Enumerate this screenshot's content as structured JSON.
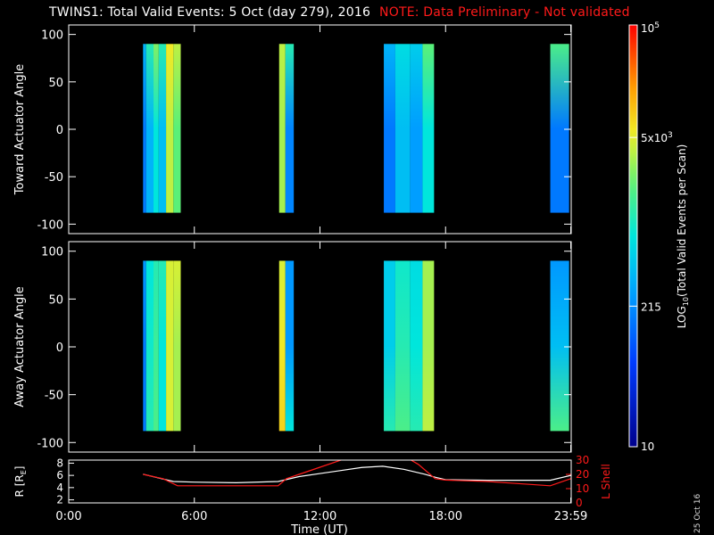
{
  "title": {
    "main": "TWINS1: Total Valid Events:  5 Oct (day 279), 2016",
    "note": "NOTE: Data Preliminary - Not validated"
  },
  "datestamp": "25 Oct 16",
  "colors": {
    "note": "#ff1a1a",
    "r_line": "#ffffff",
    "lshell_line": "#ff1a1a",
    "background": "#000000"
  },
  "chart_data": [
    {
      "type": "heatmap",
      "ylabel": "Toward Actuator Angle",
      "ylim": [
        -110,
        110
      ],
      "yticks": [
        100,
        50,
        0,
        -50,
        -100
      ],
      "angle_range": [
        -88,
        90
      ],
      "x_unit": "hours UT",
      "bands": [
        {
          "x": [
            3.55,
            3.7
          ],
          "lvl": 0.3,
          "tint": [
            0.3,
            0.4
          ]
        },
        {
          "x": [
            3.7,
            4.05
          ],
          "lvl": 0.4,
          "tint": [
            0.4,
            0.55
          ]
        },
        {
          "x": [
            4.05,
            4.3
          ],
          "lvl": 0.5,
          "tint": [
            0.5,
            0.65
          ]
        },
        {
          "x": [
            4.3,
            4.65
          ],
          "lvl": 0.42,
          "tint": [
            0.42,
            0.55
          ]
        },
        {
          "x": [
            4.65,
            5.0
          ],
          "lvl": 0.7,
          "tint": [
            0.7,
            0.75
          ]
        },
        {
          "x": [
            5.0,
            5.35
          ],
          "lvl": 0.62,
          "tint": [
            0.62,
            0.7
          ]
        },
        {
          "x": [
            10.05,
            10.35
          ],
          "lvl": 0.68,
          "tint": [
            0.68,
            0.7
          ]
        },
        {
          "x": [
            10.35,
            10.75
          ],
          "lvl": 0.32,
          "tint": [
            0.32,
            0.55
          ]
        },
        {
          "x": [
            15.05,
            15.6
          ],
          "lvl": 0.3,
          "tint": [
            0.3,
            0.4
          ]
        },
        {
          "x": [
            15.6,
            16.3
          ],
          "lvl": 0.42,
          "tint": [
            0.42,
            0.48
          ]
        },
        {
          "x": [
            16.3,
            16.9
          ],
          "lvl": 0.36,
          "tint": [
            0.36,
            0.45
          ]
        },
        {
          "x": [
            16.9,
            17.45
          ],
          "lvl": 0.5,
          "tint": [
            0.5,
            0.62
          ]
        },
        {
          "x": [
            23.0,
            23.9
          ],
          "lvl": 0.3,
          "tint": [
            0.3,
            0.6
          ]
        }
      ]
    },
    {
      "type": "heatmap",
      "ylabel": "Away Actuator Angle",
      "ylim": [
        -110,
        110
      ],
      "yticks": [
        100,
        50,
        0,
        -50,
        -100
      ],
      "angle_range": [
        -88,
        90
      ],
      "x_unit": "hours UT",
      "bands": [
        {
          "x": [
            3.55,
            3.7
          ],
          "lvl": 0.3,
          "tint": [
            0.3,
            0.35
          ]
        },
        {
          "x": [
            3.7,
            4.05
          ],
          "lvl": 0.52,
          "tint": [
            0.55,
            0.5
          ]
        },
        {
          "x": [
            4.05,
            4.3
          ],
          "lvl": 0.58,
          "tint": [
            0.6,
            0.55
          ]
        },
        {
          "x": [
            4.3,
            4.65
          ],
          "lvl": 0.5,
          "tint": [
            0.5,
            0.55
          ]
        },
        {
          "x": [
            4.65,
            5.0
          ],
          "lvl": 0.72,
          "tint": [
            0.72,
            0.72
          ]
        },
        {
          "x": [
            5.0,
            5.35
          ],
          "lvl": 0.68,
          "tint": [
            0.68,
            0.72
          ]
        },
        {
          "x": [
            10.05,
            10.35
          ],
          "lvl": 0.75,
          "tint": [
            0.78,
            0.72
          ]
        },
        {
          "x": [
            10.35,
            10.75
          ],
          "lvl": 0.35,
          "tint": [
            0.5,
            0.35
          ]
        },
        {
          "x": [
            15.05,
            15.6
          ],
          "lvl": 0.45,
          "tint": [
            0.55,
            0.45
          ]
        },
        {
          "x": [
            15.6,
            16.3
          ],
          "lvl": 0.55,
          "tint": [
            0.6,
            0.52
          ]
        },
        {
          "x": [
            16.3,
            16.9
          ],
          "lvl": 0.5,
          "tint": [
            0.55,
            0.48
          ]
        },
        {
          "x": [
            16.9,
            17.45
          ],
          "lvl": 0.68,
          "tint": [
            0.7,
            0.68
          ]
        },
        {
          "x": [
            23.0,
            23.9
          ],
          "lvl": 0.42,
          "tint": [
            0.6,
            0.35
          ]
        }
      ]
    },
    {
      "type": "line",
      "xlabel": "Time (UT)",
      "xlim": [
        0,
        24
      ],
      "xticks": [
        {
          "value": 0,
          "label": "0:00"
        },
        {
          "value": 6,
          "label": "6:00"
        },
        {
          "value": 12,
          "label": "12:00"
        },
        {
          "value": 18,
          "label": "18:00"
        },
        {
          "value": 23.98,
          "label": "23:59"
        }
      ],
      "ylabel_left": "R [R",
      "ylabel_left_sub": "E",
      "ylabel_left_close": "]",
      "ylim_left": [
        1.5,
        8.5
      ],
      "yticks_left": [
        2,
        4,
        6,
        8
      ],
      "ylabel_right": "L Shell",
      "ylim_right": [
        0,
        30
      ],
      "yticks_right": [
        0,
        10,
        20,
        30
      ],
      "series": [
        {
          "axis": "left",
          "color": "#ffffff",
          "x": [
            3.55,
            5.0,
            6.0,
            8.0,
            10.0,
            11.0,
            12.0,
            13.0,
            14.0,
            15.0,
            16.0,
            17.0,
            17.5,
            18.0,
            20.0,
            22.0,
            23.0,
            23.98
          ],
          "y": [
            6.2,
            5.0,
            4.9,
            4.8,
            5.0,
            5.8,
            6.3,
            6.8,
            7.3,
            7.5,
            7.0,
            6.2,
            5.7,
            5.3,
            5.2,
            5.2,
            5.2,
            6.0
          ]
        },
        {
          "axis": "right",
          "color": "#ff1a1a",
          "x": [
            3.55,
            4.5,
            5.2,
            6.0,
            8.0,
            9.0,
            10.0,
            10.4,
            11.0,
            12.0,
            13.0,
            13.5,
            14.0,
            15.0,
            16.0,
            16.7,
            17.5,
            18.0,
            20.0,
            22.0,
            23.0,
            23.98
          ],
          "y": [
            20.0,
            17.0,
            12.0,
            12.0,
            12.0,
            12.0,
            12.0,
            17.0,
            20.0,
            25.0,
            30.0,
            32.0,
            33.0,
            33.0,
            33.0,
            27.0,
            17.0,
            16.0,
            15.0,
            13.0,
            12.0,
            17.0
          ]
        }
      ]
    }
  ],
  "colorbar": {
    "label": "LOG",
    "label_sub": "10",
    "label_rest": "(Total Valid Events per Scan)",
    "ticks": [
      {
        "frac": 0.0,
        "main": "10"
      },
      {
        "frac": 0.3333,
        "main": "215"
      },
      {
        "frac": 0.7333,
        "main": "5x10",
        "sup": "3"
      },
      {
        "frac": 1.0,
        "main": "10",
        "sup": "5"
      }
    ]
  }
}
